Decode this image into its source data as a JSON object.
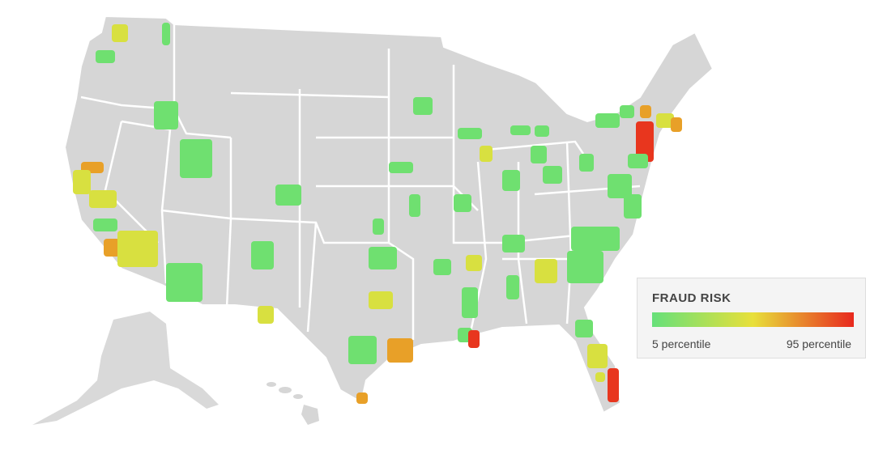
{
  "legend": {
    "title": "FRAUD RISK",
    "min_label": "5 percentile",
    "max_label": "95 percentile",
    "colors": [
      "#66e07a",
      "#e8e03a",
      "#e8281e"
    ]
  }
}
